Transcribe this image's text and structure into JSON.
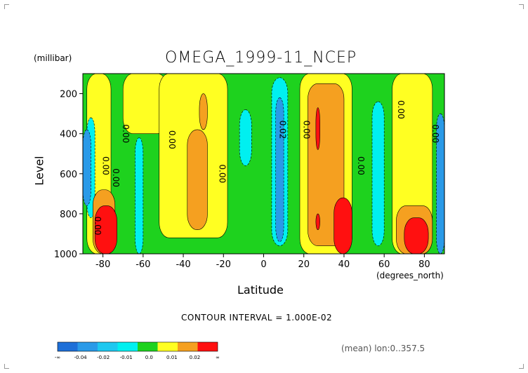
{
  "chart_data": {
    "type": "heatmap",
    "title": "OMEGA_1999-11_NCEP",
    "xlabel": "Latitude",
    "xunit": "(degrees_north)",
    "ylabel": "Level",
    "yunit": "(millibar)",
    "xlim": [
      -90,
      90
    ],
    "ylim": [
      1000,
      100
    ],
    "x_ticks": [
      "-80",
      "-60",
      "-40",
      "-20",
      "0",
      "20",
      "40",
      "60",
      "80"
    ],
    "x_tick_values": [
      -80,
      -60,
      -40,
      -20,
      0,
      20,
      40,
      60,
      80
    ],
    "y_ticks": [
      "200",
      "400",
      "600",
      "800",
      "1000"
    ],
    "y_tick_values": [
      200,
      400,
      600,
      800,
      1000
    ],
    "contour_labels": [
      "0.00",
      "0.00",
      "0.00",
      "0.00",
      "0.00",
      "0.02",
      "0.00",
      "0.00",
      "0.00",
      "0.00",
      "0.00"
    ],
    "colorbar": {
      "labels": [
        "-∞",
        "-0.04",
        "-0.02",
        "-0.01",
        "0.0",
        "0.01",
        "0.02",
        "∞"
      ],
      "colors": [
        "#1e6fd8",
        "#2a9ae8",
        "#1ec8f0",
        "#00f0f0",
        "#1ed21e",
        "#ffff22",
        "#f5a020",
        "#ff1010"
      ]
    },
    "palette": {
      "green": "#1ed21e",
      "cyan": "#00f0f0",
      "lightblue": "#1ec8f0",
      "blue": "#2a9ae8",
      "darkblue": "#1e6fd8",
      "yellow": "#ffff22",
      "orange": "#f5a020",
      "red": "#ff1010"
    },
    "regions": [
      {
        "color": "yellow",
        "lat": [
          -88,
          -76
        ],
        "lev": [
          100,
          1000
        ]
      },
      {
        "color": "cyan",
        "lat": [
          -88,
          -84
        ],
        "lev": [
          320,
          820
        ]
      },
      {
        "color": "blue",
        "lat": [
          -90,
          -86
        ],
        "lev": [
          380,
          760
        ]
      },
      {
        "color": "orange",
        "lat": [
          -85,
          -74
        ],
        "lev": [
          680,
          1000
        ]
      },
      {
        "color": "red",
        "lat": [
          -84,
          -73
        ],
        "lev": [
          760,
          1000
        ]
      },
      {
        "color": "yellow",
        "lat": [
          -70,
          -48
        ],
        "lev": [
          100,
          400
        ]
      },
      {
        "color": "cyan",
        "lat": [
          -64,
          -60
        ],
        "lev": [
          420,
          1000
        ]
      },
      {
        "color": "yellow",
        "lat": [
          -52,
          -18
        ],
        "lev": [
          100,
          920
        ]
      },
      {
        "color": "orange",
        "lat": [
          -38,
          -28
        ],
        "lev": [
          380,
          880
        ]
      },
      {
        "color": "orange",
        "lat": [
          -32,
          -28
        ],
        "lev": [
          200,
          380
        ]
      },
      {
        "color": "cyan",
        "lat": [
          -12,
          -6
        ],
        "lev": [
          280,
          560
        ]
      },
      {
        "color": "cyan",
        "lat": [
          4,
          12
        ],
        "lev": [
          120,
          960
        ]
      },
      {
        "color": "blue",
        "lat": [
          6,
          10
        ],
        "lev": [
          220,
          940
        ]
      },
      {
        "color": "yellow",
        "lat": [
          18,
          44
        ],
        "lev": [
          100,
          1000
        ]
      },
      {
        "color": "orange",
        "lat": [
          22,
          40
        ],
        "lev": [
          150,
          960
        ]
      },
      {
        "color": "red",
        "lat": [
          26,
          28
        ],
        "lev": [
          270,
          480
        ]
      },
      {
        "color": "red",
        "lat": [
          35,
          44
        ],
        "lev": [
          720,
          1000
        ]
      },
      {
        "color": "red",
        "lat": [
          26,
          28
        ],
        "lev": [
          800,
          880
        ]
      },
      {
        "color": "cyan",
        "lat": [
          54,
          60
        ],
        "lev": [
          240,
          960
        ]
      },
      {
        "color": "yellow",
        "lat": [
          64,
          84
        ],
        "lev": [
          100,
          1000
        ]
      },
      {
        "color": "orange",
        "lat": [
          66,
          84
        ],
        "lev": [
          760,
          1000
        ]
      },
      {
        "color": "red",
        "lat": [
          70,
          82
        ],
        "lev": [
          820,
          1000
        ]
      },
      {
        "color": "blue",
        "lat": [
          86,
          90
        ],
        "lev": [
          300,
          1000
        ]
      }
    ]
  },
  "labels": {
    "title": "OMEGA_1999-11_NCEP",
    "unit": "(millibar)",
    "ylabel": "Level",
    "xlabel": "Latitude",
    "xunit": "(degrees_north)",
    "contour_interval": "CONTOUR INTERVAL = 1.000E-02",
    "mean_note": "(mean) lon:0..357.5"
  }
}
